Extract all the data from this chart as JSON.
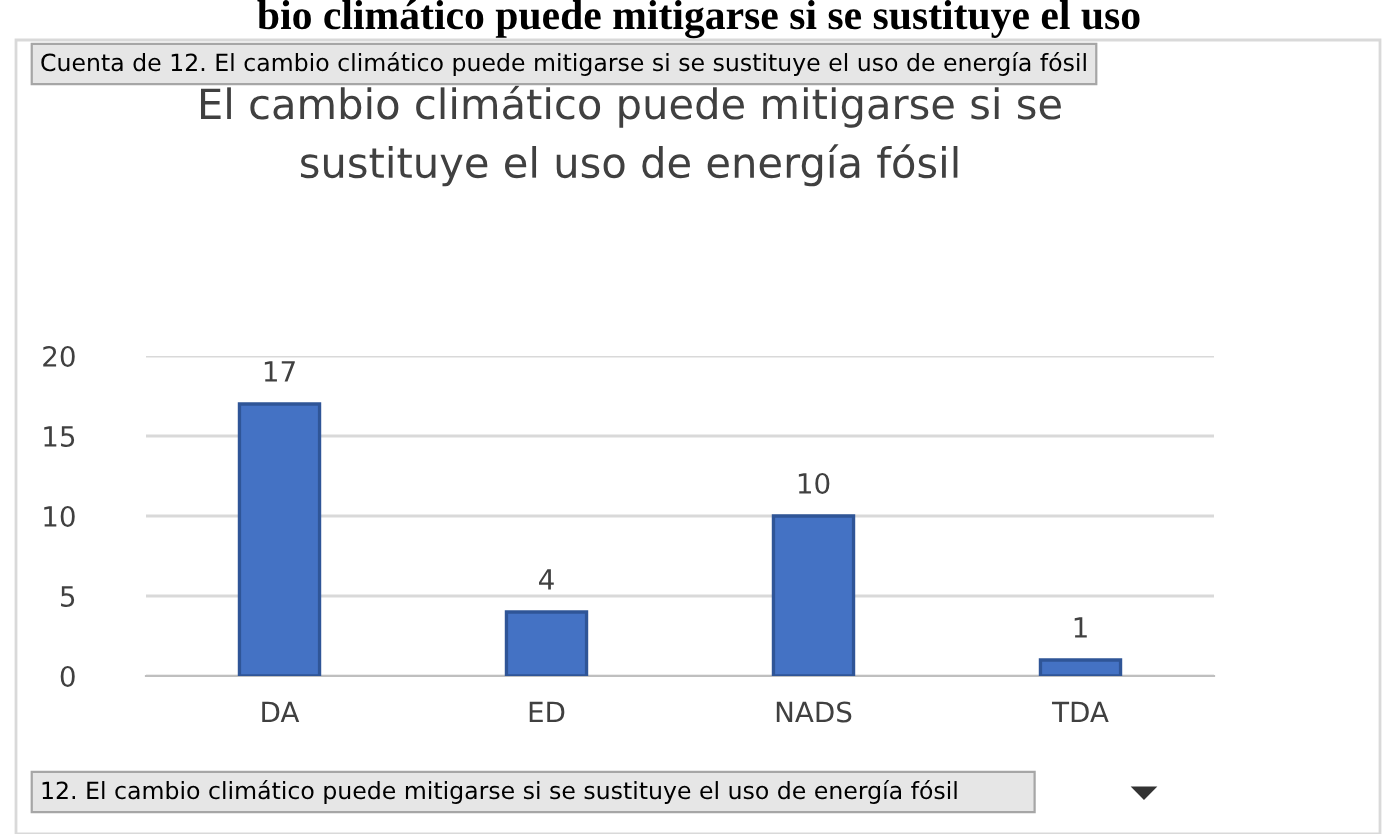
{
  "chart_data": {
    "type": "bar",
    "title": "El cambio climático puede mitigarse si se\nsustituye el uso de energía fósil",
    "categories": [
      "DA",
      "ED",
      "NADS",
      "TDA"
    ],
    "values": [
      17,
      4,
      10,
      1
    ],
    "color": "#4472c4",
    "ylim": [
      0,
      20
    ],
    "yticks": [
      0,
      5,
      10,
      15,
      20
    ],
    "grid": "y",
    "data_labels": true,
    "annotations": [
      "bio climático puede mitigarse si se sustituye el uso",
      "Cuenta de 12. El cambio climático puede mitigarse si se sustituye el uso de energía fósil",
      "12. El cambio climático puede mitigarse si se sustituye el uso de energía fósil"
    ]
  }
}
